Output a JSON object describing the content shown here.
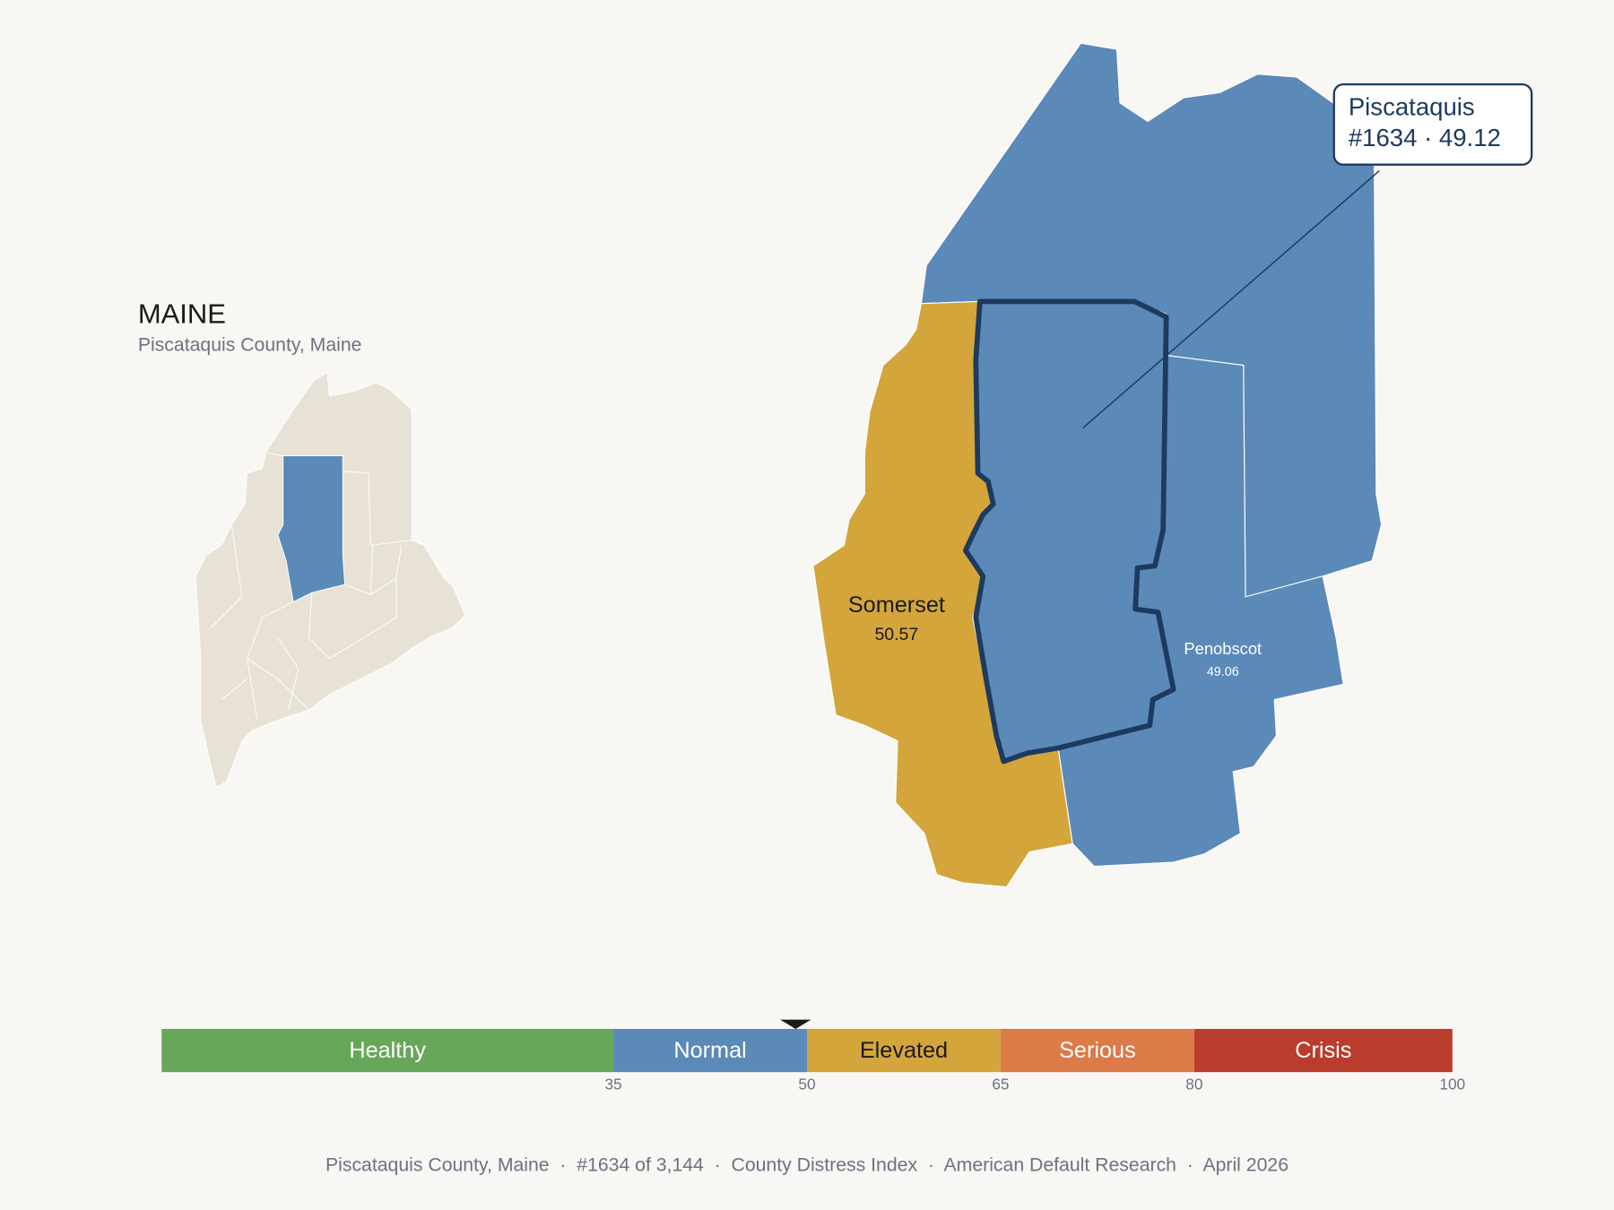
{
  "header": {
    "title": "MAINE",
    "subtitle": "Piscataquis County, Maine"
  },
  "county": {
    "name": "Piscataquis",
    "rank_label": "#1634 · 49.12",
    "score": 49.12,
    "color": "#5b89b8",
    "outline": "#1d3a5f"
  },
  "neighbors": [
    {
      "name": "Somerset",
      "value": 50.57,
      "color": "#d4a53a",
      "text_color": "#1a1a1a"
    },
    {
      "name": "Penobscot",
      "value": 49.06,
      "color": "#5b89b8",
      "text_color": "#ffffff"
    }
  ],
  "scale": {
    "range": [
      0,
      100
    ],
    "bands": [
      {
        "name": "Healthy",
        "to": 35,
        "color": "#67a75a",
        "text_color": "#ffffff"
      },
      {
        "name": "Normal",
        "to": 50,
        "color": "#5b89b8",
        "text_color": "#ffffff"
      },
      {
        "name": "Elevated",
        "to": 65,
        "color": "#d4a53a",
        "text_color": "#1a1a1a"
      },
      {
        "name": "Serious",
        "to": 80,
        "color": "#dc7a48",
        "text_color": "#ffffff"
      },
      {
        "name": "Crisis",
        "to": 100,
        "color": "#b93c2c",
        "text_color": "#ffffff"
      }
    ]
  },
  "footer": "Piscataquis County, Maine  ·  #1634 of 3,144  ·  County Distress Index  ·  American Default Research  ·  April 2026"
}
